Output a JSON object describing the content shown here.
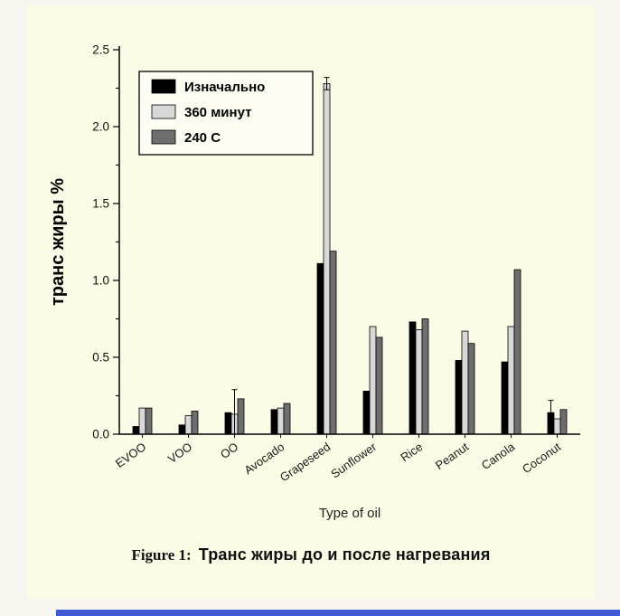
{
  "page": {
    "background": "#f6f5ef",
    "card_background": "#fbfbe6",
    "accent_bar_color": "#3e5ad4"
  },
  "caption": {
    "prefix": "Figure 1:",
    "text": "Транс жиры до и после нагревания"
  },
  "chart_data": {
    "type": "bar",
    "title": "",
    "xlabel": "Type of oil",
    "ylabel": "транс жиры %",
    "ylim": [
      0,
      2.5
    ],
    "yticks": [
      "0.0",
      "0.5",
      "1.0",
      "1.5",
      "2.0",
      "2.5"
    ],
    "grid": false,
    "legend_position": "top-left",
    "categories": [
      "EVOO",
      "VOO",
      "OO",
      "Avocado",
      "Grapeseed",
      "Sunflower",
      "Rice",
      "Peanut",
      "Canola",
      "Coconut"
    ],
    "series": [
      {
        "name": "Изначально",
        "color": "#000000",
        "values": [
          0.05,
          0.06,
          0.14,
          0.16,
          1.11,
          0.28,
          0.73,
          0.48,
          0.47,
          0.14
        ],
        "errors": [
          0,
          0,
          0,
          0,
          0,
          0,
          0,
          0,
          0,
          0.08
        ]
      },
      {
        "name": "360 минут",
        "color": "#d8d8d8",
        "values": [
          0.17,
          0.12,
          0.13,
          0.17,
          2.28,
          0.7,
          0.68,
          0.67,
          0.7,
          0.1
        ],
        "errors": [
          0,
          0,
          0.16,
          0,
          0.04,
          0,
          0,
          0,
          0,
          0
        ]
      },
      {
        "name": "240 C",
        "color": "#6e6e6e",
        "values": [
          0.17,
          0.15,
          0.23,
          0.2,
          1.19,
          0.63,
          0.75,
          0.59,
          1.07,
          0.16
        ],
        "errors": [
          0,
          0,
          0,
          0,
          0,
          0,
          0,
          0,
          0,
          0
        ]
      }
    ]
  }
}
